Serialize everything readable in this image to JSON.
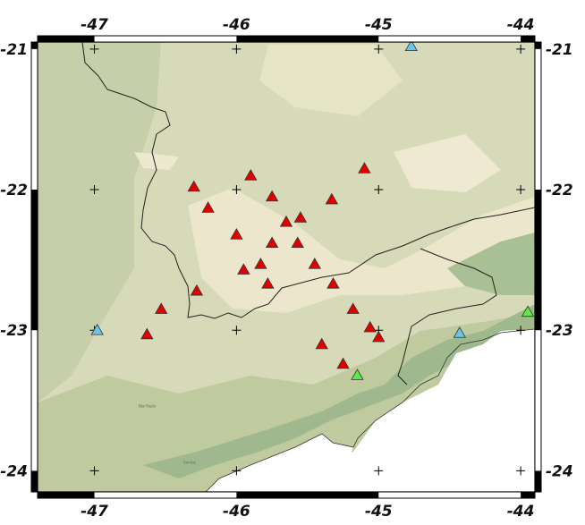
{
  "map": {
    "lon_range": [
      -47.4,
      -43.9
    ],
    "lat_range": [
      -24.15,
      -20.95
    ],
    "x_ticks": [
      {
        "value": -47,
        "label": "-47"
      },
      {
        "value": -46,
        "label": "-46"
      },
      {
        "value": -45,
        "label": "-45"
      },
      {
        "value": -44,
        "label": "-44"
      }
    ],
    "y_ticks": [
      {
        "value": -21,
        "label": "-21"
      },
      {
        "value": -22,
        "label": "-22"
      },
      {
        "value": -23,
        "label": "-23"
      },
      {
        "value": -24,
        "label": "-24"
      }
    ],
    "place_labels": [
      {
        "name": "São Paulo",
        "lon": -46.63,
        "lat": -23.55
      },
      {
        "name": "Santos",
        "lon": -46.33,
        "lat": -23.95
      }
    ],
    "colors": {
      "lowland": "#c6cfa9",
      "plain": "#d8dcba",
      "highland": "#e8e5c9",
      "peak": "#f2ead4",
      "coastal_green": "#9fb88e",
      "ocean": "#ffffff",
      "red_station": "#e00000",
      "blue_station": "#6cc4e6",
      "green_station": "#5ee84a"
    }
  },
  "stations": {
    "red": [
      {
        "lon": -45.1,
        "lat": -21.85
      },
      {
        "lon": -45.9,
        "lat": -21.9
      },
      {
        "lon": -46.3,
        "lat": -21.98
      },
      {
        "lon": -45.75,
        "lat": -22.05
      },
      {
        "lon": -45.33,
        "lat": -22.07
      },
      {
        "lon": -46.2,
        "lat": -22.13
      },
      {
        "lon": -45.55,
        "lat": -22.2
      },
      {
        "lon": -45.65,
        "lat": -22.23
      },
      {
        "lon": -46.0,
        "lat": -22.32
      },
      {
        "lon": -45.75,
        "lat": -22.38
      },
      {
        "lon": -45.57,
        "lat": -22.38
      },
      {
        "lon": -45.45,
        "lat": -22.53
      },
      {
        "lon": -45.83,
        "lat": -22.53
      },
      {
        "lon": -45.95,
        "lat": -22.57
      },
      {
        "lon": -45.78,
        "lat": -22.67
      },
      {
        "lon": -45.32,
        "lat": -22.67
      },
      {
        "lon": -46.28,
        "lat": -22.72
      },
      {
        "lon": -46.53,
        "lat": -22.85
      },
      {
        "lon": -45.18,
        "lat": -22.85
      },
      {
        "lon": -45.06,
        "lat": -22.98
      },
      {
        "lon": -45.0,
        "lat": -23.05
      },
      {
        "lon": -46.63,
        "lat": -23.03
      },
      {
        "lon": -45.4,
        "lat": -23.1
      },
      {
        "lon": -45.25,
        "lat": -23.24
      }
    ],
    "blue": [
      {
        "lon": -44.77,
        "lat": -20.98
      },
      {
        "lon": -46.98,
        "lat": -23.0
      },
      {
        "lon": -44.43,
        "lat": -23.02
      }
    ],
    "green": [
      {
        "lon": -45.15,
        "lat": -23.32
      },
      {
        "lon": -43.95,
        "lat": -22.87
      }
    ]
  }
}
